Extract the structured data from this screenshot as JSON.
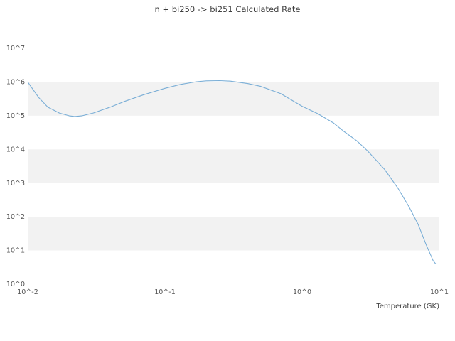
{
  "chart_data": {
    "type": "line",
    "title": "n + bi250 -> bi251 Calculated Rate",
    "xlabel": "Temperature (GK)",
    "ylabel": "",
    "xscale": "log",
    "yscale": "log",
    "xlim": [
      0.01,
      10
    ],
    "ylim": [
      1,
      10000000
    ],
    "grid": "alternating horizontal decade bands",
    "legend": "none",
    "colors": {
      "line": "#7aaed6",
      "band": "#f2f2f2",
      "title_text": "#3c3c3c",
      "tick_text": "#555555"
    },
    "x_ticks": [
      {
        "label": "10^-2",
        "value": 0.01
      },
      {
        "label": "10^-1",
        "value": 0.1
      },
      {
        "label": "10^0",
        "value": 1
      },
      {
        "label": "10^1",
        "value": 10
      }
    ],
    "y_ticks": [
      {
        "label": "10^0",
        "value": 1
      },
      {
        "label": "10^1",
        "value": 10
      },
      {
        "label": "10^2",
        "value": 100
      },
      {
        "label": "10^3",
        "value": 1000
      },
      {
        "label": "10^4",
        "value": 10000
      },
      {
        "label": "10^5",
        "value": 100000
      },
      {
        "label": "10^6",
        "value": 1000000
      },
      {
        "label": "10^7",
        "value": 10000000
      }
    ],
    "series": [
      {
        "name": "calculated-rate",
        "x": [
          0.01,
          0.012,
          0.014,
          0.017,
          0.02,
          0.022,
          0.025,
          0.03,
          0.04,
          0.05,
          0.07,
          0.1,
          0.13,
          0.17,
          0.2,
          0.25,
          0.3,
          0.4,
          0.5,
          0.7,
          1.0,
          1.3,
          1.7,
          2.0,
          2.5,
          3.0,
          4.0,
          5.0,
          6.0,
          7.0,
          8.0,
          9.0,
          9.4
        ],
        "y": [
          1000000,
          350000,
          180000,
          120000,
          100000,
          95000,
          100000,
          120000,
          180000,
          260000,
          420000,
          650000,
          850000,
          1020000,
          1080000,
          1100000,
          1060000,
          900000,
          740000,
          450000,
          190000,
          115000,
          60000,
          35000,
          18000,
          9000,
          2500,
          700,
          200,
          60,
          15,
          5,
          4
        ]
      }
    ]
  }
}
